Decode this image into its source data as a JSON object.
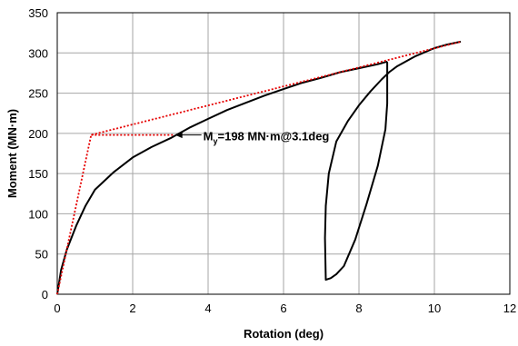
{
  "chart_data": {
    "type": "line",
    "title": "",
    "xlabel": "Rotation (deg)",
    "ylabel": "Moment (MN·m)",
    "xlim": [
      0,
      12
    ],
    "ylim": [
      0,
      350
    ],
    "xticks": [
      0,
      2,
      4,
      6,
      8,
      10,
      12
    ],
    "yticks": [
      0,
      50,
      100,
      150,
      200,
      250,
      300,
      350
    ],
    "grid": true,
    "legend": "none",
    "colors": {
      "response": "#000000",
      "idealized": "#e60000",
      "grid": "#a6a6a6"
    },
    "series": [
      {
        "style": "solid",
        "x": [
          0,
          0.1,
          0.25,
          0.5,
          0.75,
          1.0,
          1.5,
          2.0,
          2.5,
          3.0,
          3.5,
          4.0,
          4.5,
          5.0,
          5.5,
          6.0,
          6.5,
          7.0,
          7.5,
          8.0,
          8.5,
          8.73,
          8.75,
          8.75,
          8.7,
          8.5,
          8.2,
          7.9,
          7.6,
          7.4,
          7.25,
          7.12,
          7.1,
          7.12,
          7.2,
          7.4,
          7.7,
          8.0,
          8.3,
          8.6,
          8.8,
          9.0,
          9.5,
          10.0,
          10.3,
          10.7
        ],
        "y": [
          0,
          30,
          55,
          85,
          110,
          130,
          152,
          170,
          183,
          194,
          207,
          218,
          229,
          238,
          247,
          255,
          263,
          269,
          276,
          281,
          286,
          289,
          288,
          237,
          205,
          160,
          112,
          68,
          35,
          25,
          20,
          18,
          70,
          110,
          150,
          190,
          215,
          235,
          252,
          267,
          276,
          283,
          296,
          306,
          310,
          314
        ]
      },
      {
        "style": "dotted",
        "x": [
          0,
          0.9,
          10.7
        ],
        "y": [
          0,
          198,
          314
        ]
      },
      {
        "style": "dotted",
        "x": [
          0.9,
          3.1
        ],
        "y": [
          198,
          198
        ]
      }
    ],
    "annotations": [
      {
        "text_main": "M",
        "text_sub": "y",
        "text_rest": "=198 MN·m@3.1deg",
        "x": 3.1,
        "y": 198
      }
    ]
  }
}
